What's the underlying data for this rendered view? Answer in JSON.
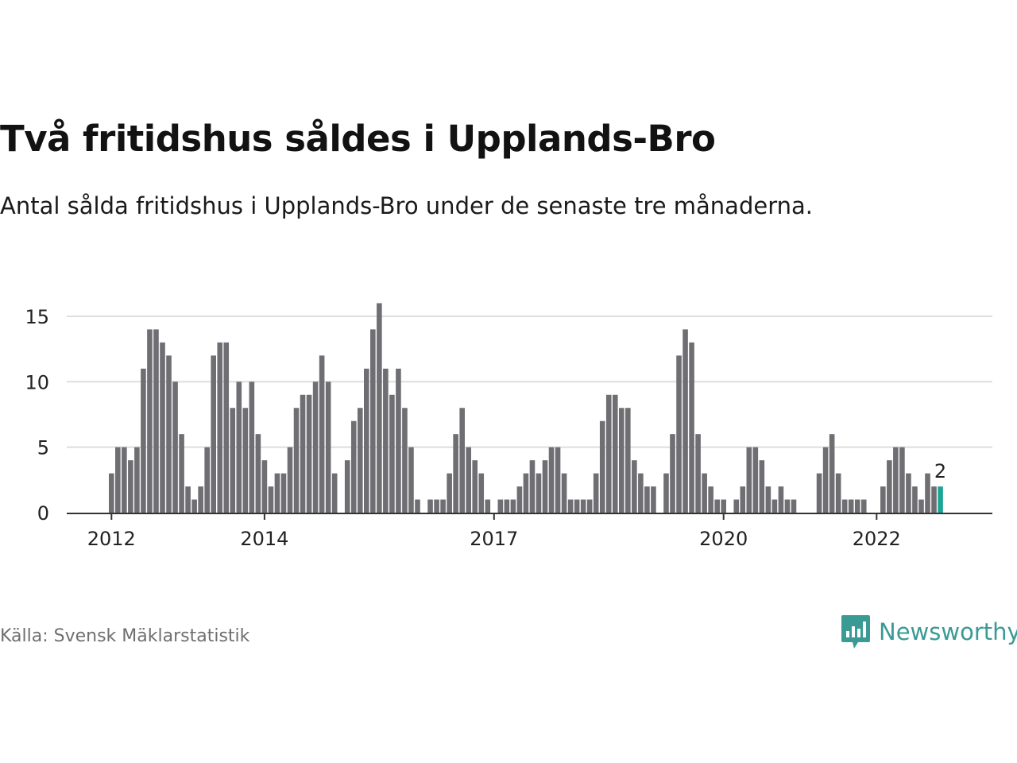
{
  "title": "Två fritidshus såldes i Upplands-Bro",
  "subtitle": "Antal sålda fritidshus i Upplands-Bro under de senaste tre månaderna.",
  "source": "Källa: Svensk Mäklarstatistik",
  "brand": "Newsworthy",
  "colors": {
    "bar": "#6f6e73",
    "highlight": "#1aa597",
    "grid": "#dedede",
    "axis": "#333333",
    "brand": "#3a9a94"
  },
  "icons": {
    "logo": "bar-chart-speech-bubble-icon"
  },
  "chart_data": {
    "type": "bar",
    "title": "",
    "xlabel": "",
    "ylabel": "",
    "ylim": [
      0,
      17
    ],
    "yticks": [
      0,
      5,
      10,
      15
    ],
    "grid": true,
    "x_start": "2012-01",
    "x_interval": "month",
    "xtick_labels": [
      {
        "x": "2012-01",
        "label": "2012"
      },
      {
        "x": "2014-01",
        "label": "2014"
      },
      {
        "x": "2017-01",
        "label": "2017"
      },
      {
        "x": "2020-01",
        "label": "2020"
      },
      {
        "x": "2022-01",
        "label": "2022"
      }
    ],
    "series": [
      {
        "values": [
          3,
          5,
          5,
          4,
          5,
          11,
          14,
          14,
          13,
          12,
          10,
          6,
          2,
          1,
          2,
          5,
          12,
          13,
          13,
          8,
          10,
          8,
          10,
          6,
          4,
          2,
          3,
          3,
          5,
          8,
          9,
          9,
          10,
          12,
          10,
          3,
          0,
          4,
          7,
          8,
          11,
          14,
          16,
          11,
          9,
          11,
          8,
          5,
          1,
          0,
          1,
          1,
          1,
          3,
          6,
          8,
          5,
          4,
          3,
          1,
          0,
          1,
          1,
          1,
          2,
          3,
          4,
          3,
          4,
          5,
          5,
          3,
          1,
          1,
          1,
          1,
          3,
          7,
          9,
          9,
          8,
          8,
          4,
          3,
          2,
          2,
          0,
          3,
          6,
          12,
          14,
          13,
          6,
          3,
          2,
          1,
          1,
          0,
          1,
          2,
          5,
          5,
          4,
          2,
          1,
          2,
          1,
          1,
          0,
          0,
          0,
          3,
          5,
          6,
          3,
          1,
          1,
          1,
          1,
          0,
          0,
          2,
          4,
          5,
          5,
          3,
          2,
          1,
          3,
          2,
          2
        ]
      }
    ],
    "highlight_index": 130,
    "annotation": {
      "index": 130,
      "label": "2"
    }
  }
}
